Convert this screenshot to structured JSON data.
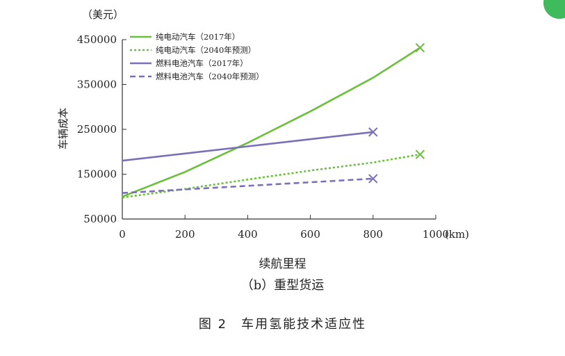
{
  "chart_data": {
    "type": "line",
    "title": "图 2　车用氢能技术适应性",
    "subtitle": "（b）重型货运",
    "xlabel": "续航里程",
    "xunit": "(km)",
    "ylabel": "车辆成本",
    "yunit": "（美元）",
    "xlim": [
      0,
      1000
    ],
    "ylim": [
      50000,
      450000
    ],
    "xticks": [
      0,
      200,
      400,
      600,
      800,
      1000
    ],
    "yticks": [
      50000,
      150000,
      250000,
      350000,
      450000
    ],
    "grid": false,
    "legend_position": "top-left",
    "series": [
      {
        "name": "纯电动汽车（2017年）",
        "color": "#6abf3a",
        "style": "solid",
        "x": [
          0,
          200,
          400,
          600,
          800,
          950
        ],
        "y": [
          100000,
          155000,
          220000,
          290000,
          365000,
          432000
        ],
        "end_marker": "x"
      },
      {
        "name": "纯电动汽车（2040年预测）",
        "color": "#6abf3a",
        "style": "dotted",
        "x": [
          0,
          200,
          400,
          600,
          800,
          950
        ],
        "y": [
          98000,
          117000,
          138000,
          158000,
          176000,
          194000
        ],
        "end_marker": "x"
      },
      {
        "name": "燃料电池汽车（2017年）",
        "color": "#7a70b8",
        "style": "solid",
        "x": [
          0,
          200,
          400,
          600,
          800
        ],
        "y": [
          180000,
          196000,
          212000,
          228000,
          244000
        ],
        "end_marker": "x"
      },
      {
        "name": "燃料电池汽车（2040年预测）",
        "color": "#7a70b8",
        "style": "dashed",
        "x": [
          0,
          200,
          400,
          600,
          800
        ],
        "y": [
          108000,
          116000,
          124000,
          132000,
          140000
        ],
        "end_marker": "x"
      }
    ]
  }
}
